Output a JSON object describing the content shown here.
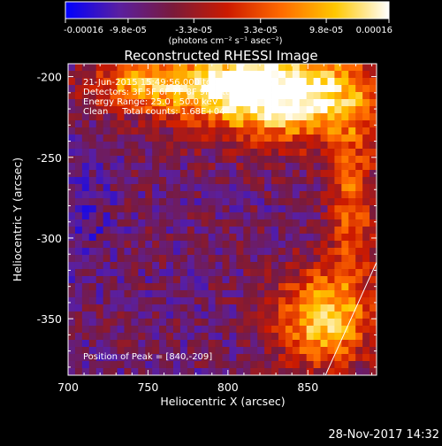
{
  "chart_data": {
    "type": "heatmap",
    "title": "Reconstructed RHESSI Image",
    "xlabel": "Heliocentric X (arcsec)",
    "ylabel": "Heliocentric Y (arcsec)",
    "xlim": [
      700,
      893
    ],
    "ylim": [
      -385,
      -192
    ],
    "x_ticks": [
      700,
      750,
      800,
      850
    ],
    "x_tick_labels": [
      "700",
      "750",
      "800",
      "850"
    ],
    "y_ticks": [
      -200,
      -250,
      -300,
      -350
    ],
    "y_tick_labels": [
      "-200",
      "-250",
      "-300",
      "-350"
    ],
    "colorbar": {
      "range": [
        -0.00016,
        0.00016
      ],
      "ticks": [
        -0.00016,
        -9.8e-05,
        -3.3e-05,
        3.3e-05,
        9.8e-05,
        0.00016
      ],
      "tick_labels": [
        "-0.00016",
        "-9.8e-05",
        "-3.3e-05",
        "3.3e-05",
        "9.8e-05",
        "0.00016"
      ],
      "unit_label": "(photons cm⁻² s⁻¹ asec⁻²)",
      "colors": [
        "#0000ff",
        "#5a1fa0",
        "#7a1a3a",
        "#cc1a00",
        "#ff6a00",
        "#ffc800",
        "#ffffff"
      ]
    },
    "annotations": [
      "21-Jun-2015 15:49:56.000 to 15:59:56.000",
      "Detectors: 3F 5F 6F 7F 8F 9F, Att 0",
      "Energy Range: 25.0 - 50.0 keV",
      "Clean     Total counts: 1.68E+04"
    ],
    "peak_label": "Position of Peak = [840,-209]",
    "peak": [
      840,
      -209
    ],
    "limb_line": [
      [
        861,
        -385
      ],
      [
        893,
        -315
      ]
    ],
    "grid": false
  },
  "footer": {
    "timestamp": "28-Nov-2017 14:32"
  }
}
